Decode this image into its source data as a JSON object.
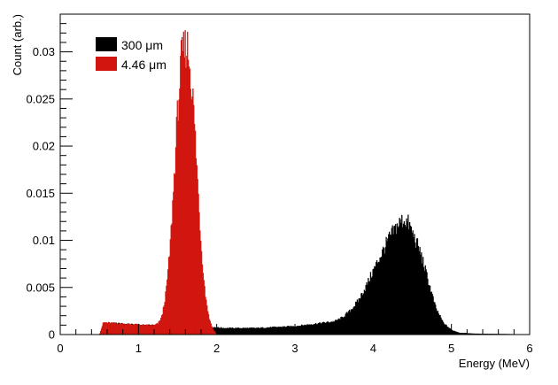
{
  "chart_data": {
    "type": "histogram",
    "title": "",
    "xlabel": "Energy (MeV)",
    "ylabel": "Count (arb.)",
    "xlim": [
      0,
      6
    ],
    "ylim": [
      0,
      0.034
    ],
    "x_ticks": [
      "0",
      "1",
      "2",
      "3",
      "4",
      "5",
      "6"
    ],
    "y_ticks": [
      "0",
      "0.005",
      "0.01",
      "0.015",
      "0.02",
      "0.025",
      "0.03"
    ],
    "legend_position": "top-left",
    "bin_width": 0.01,
    "series": [
      {
        "name": "300 μm",
        "color": "#000000",
        "points": [
          [
            0.5,
            0
          ],
          [
            0.55,
            0.0012
          ],
          [
            0.7,
            0.0012
          ],
          [
            0.9,
            0.0011
          ],
          [
            1.1,
            0.001
          ],
          [
            1.25,
            0.001
          ],
          [
            1.4,
            0.0012
          ],
          [
            1.6,
            0.0012
          ],
          [
            1.8,
            0.001
          ],
          [
            1.95,
            0.0008
          ],
          [
            2.1,
            0.0007
          ],
          [
            2.5,
            0.0007
          ],
          [
            3.0,
            0.0009
          ],
          [
            3.3,
            0.0012
          ],
          [
            3.5,
            0.0014
          ],
          [
            3.6,
            0.0018
          ],
          [
            3.7,
            0.0025
          ],
          [
            3.8,
            0.0035
          ],
          [
            3.9,
            0.005
          ],
          [
            4.0,
            0.0068
          ],
          [
            4.1,
            0.0085
          ],
          [
            4.2,
            0.0102
          ],
          [
            4.3,
            0.0115
          ],
          [
            4.35,
            0.012
          ],
          [
            4.4,
            0.0122
          ],
          [
            4.45,
            0.0118
          ],
          [
            4.5,
            0.0108
          ],
          [
            4.6,
            0.0088
          ],
          [
            4.7,
            0.0058
          ],
          [
            4.8,
            0.0028
          ],
          [
            4.9,
            0.0012
          ],
          [
            5.0,
            0.0005
          ],
          [
            5.1,
            0.0002
          ],
          [
            5.3,
            0.0001
          ],
          [
            5.8,
            5e-05
          ],
          [
            6.0,
            0
          ]
        ]
      },
      {
        "name": "4.46 μm",
        "color": "#d0160f",
        "points": [
          [
            0.5,
            0
          ],
          [
            0.55,
            0.0013
          ],
          [
            0.7,
            0.0012
          ],
          [
            0.9,
            0.0011
          ],
          [
            1.1,
            0.001
          ],
          [
            1.2,
            0.001
          ],
          [
            1.25,
            0.0012
          ],
          [
            1.3,
            0.002
          ],
          [
            1.35,
            0.0045
          ],
          [
            1.4,
            0.009
          ],
          [
            1.45,
            0.016
          ],
          [
            1.5,
            0.024
          ],
          [
            1.55,
            0.0295
          ],
          [
            1.6,
            0.0305
          ],
          [
            1.62,
            0.0308
          ],
          [
            1.65,
            0.029
          ],
          [
            1.7,
            0.0245
          ],
          [
            1.75,
            0.017
          ],
          [
            1.8,
            0.0095
          ],
          [
            1.85,
            0.0045
          ],
          [
            1.9,
            0.0018
          ],
          [
            1.95,
            0.0006
          ],
          [
            2.0,
            0
          ]
        ]
      }
    ]
  }
}
